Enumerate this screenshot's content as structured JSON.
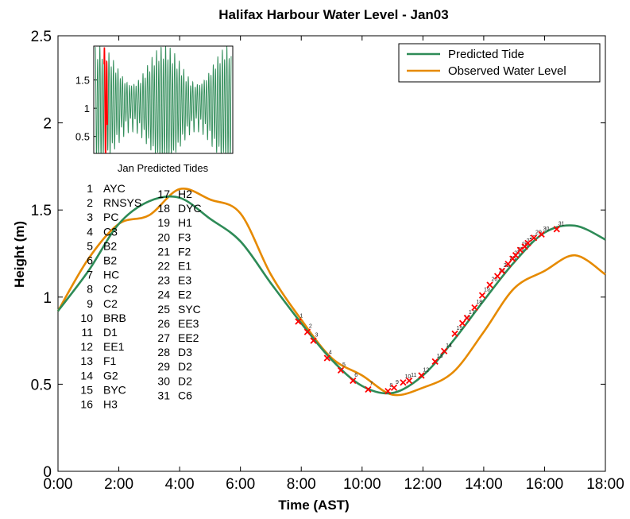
{
  "chart_data": {
    "type": "line",
    "title": "Halifax Harbour Water Level - Jan03",
    "xlabel": "Time (AST)",
    "ylabel": "Height (m)",
    "xlim": [
      0,
      18
    ],
    "ylim": [
      0,
      2.5
    ],
    "x_ticks": [
      0,
      2,
      4,
      6,
      8,
      10,
      12,
      14,
      16,
      18
    ],
    "x_tick_labels": [
      "0:00",
      "2:00",
      "4:00",
      "6:00",
      "8:00",
      "10:00",
      "12:00",
      "14:00",
      "16:00",
      "18:00"
    ],
    "y_ticks": [
      0,
      0.5,
      1,
      1.5,
      2,
      2.5
    ],
    "y_tick_labels": [
      "0",
      "0.5",
      "1",
      "1.5",
      "2",
      "2.5"
    ],
    "legend_position": "top-right",
    "series": [
      {
        "name": "Predicted Tide",
        "color": "#2e8b57",
        "x": [
          0,
          1,
          2,
          3,
          4,
          5,
          6,
          7,
          8,
          9,
          10,
          11,
          12,
          13,
          14,
          15,
          16,
          17,
          18
        ],
        "y": [
          0.92,
          1.15,
          1.42,
          1.55,
          1.57,
          1.45,
          1.32,
          1.08,
          0.85,
          0.64,
          0.49,
          0.45,
          0.55,
          0.75,
          0.98,
          1.2,
          1.37,
          1.41,
          1.33
        ]
      },
      {
        "name": "Observed Water Level",
        "color": "#e68a00",
        "x": [
          0,
          1,
          2,
          3,
          4,
          5,
          6,
          7,
          8,
          9,
          10,
          11,
          12,
          13,
          14,
          15,
          16,
          17,
          18
        ],
        "y": [
          0.92,
          1.22,
          1.42,
          1.47,
          1.62,
          1.56,
          1.48,
          1.13,
          0.87,
          0.65,
          0.55,
          0.44,
          0.48,
          0.57,
          0.8,
          1.05,
          1.15,
          1.24,
          1.13
        ]
      }
    ],
    "sample_points": {
      "color": "#ff0000",
      "labels": [
        "1",
        "2",
        "3",
        "4",
        "5",
        "6",
        "7",
        "8",
        "9",
        "10",
        "11",
        "12",
        "13",
        "14",
        "15",
        "16",
        "17",
        "18",
        "19",
        "20",
        "21",
        "22",
        "23",
        "24",
        "25",
        "26",
        "27",
        "28",
        "29",
        "30",
        "31"
      ],
      "x": [
        7.9,
        8.2,
        8.4,
        8.85,
        9.3,
        9.7,
        10.2,
        10.85,
        11.05,
        11.35,
        11.55,
        11.95,
        12.4,
        12.7,
        13.05,
        13.3,
        13.45,
        13.7,
        13.95,
        14.2,
        14.45,
        14.6,
        14.8,
        14.95,
        15.05,
        15.2,
        15.35,
        15.45,
        15.65,
        15.9,
        16.4
      ],
      "y": [
        0.86,
        0.8,
        0.75,
        0.65,
        0.58,
        0.52,
        0.47,
        0.46,
        0.48,
        0.51,
        0.52,
        0.55,
        0.63,
        0.69,
        0.79,
        0.85,
        0.88,
        0.94,
        1.01,
        1.07,
        1.12,
        1.15,
        1.19,
        1.22,
        1.24,
        1.27,
        1.29,
        1.31,
        1.34,
        1.36,
        1.39
      ]
    },
    "inset": {
      "xlabel": "Jan Predicted Tides",
      "ylim": [
        0.2,
        2.1
      ],
      "y_ticks": [
        0.5,
        1,
        1.5
      ],
      "y_tick_labels": [
        "0.5",
        "1",
        "1.5"
      ],
      "series_color": "#2e8b57",
      "marker_color": "#ff0000",
      "marker_day": 3,
      "days": 31
    }
  },
  "locations": [
    {
      "num": "1",
      "code": "AYC"
    },
    {
      "num": "2",
      "code": "RNSYS"
    },
    {
      "num": "3",
      "code": "PC"
    },
    {
      "num": "4",
      "code": "C3"
    },
    {
      "num": "5",
      "code": "B2"
    },
    {
      "num": "6",
      "code": "B2"
    },
    {
      "num": "7",
      "code": "HC"
    },
    {
      "num": "8",
      "code": "C2"
    },
    {
      "num": "9",
      "code": "C2"
    },
    {
      "num": "10",
      "code": "BRB"
    },
    {
      "num": "11",
      "code": "D1"
    },
    {
      "num": "12",
      "code": "EE1"
    },
    {
      "num": "13",
      "code": "F1"
    },
    {
      "num": "14",
      "code": "G2"
    },
    {
      "num": "15",
      "code": "BYC"
    },
    {
      "num": "16",
      "code": "H3"
    },
    {
      "num": "17",
      "code": "H2"
    },
    {
      "num": "18",
      "code": "DYC"
    },
    {
      "num": "19",
      "code": "H1"
    },
    {
      "num": "20",
      "code": "F3"
    },
    {
      "num": "21",
      "code": "F2"
    },
    {
      "num": "22",
      "code": "E1"
    },
    {
      "num": "23",
      "code": "E3"
    },
    {
      "num": "24",
      "code": "E2"
    },
    {
      "num": "25",
      "code": "SYC"
    },
    {
      "num": "26",
      "code": "EE3"
    },
    {
      "num": "27",
      "code": "EE2"
    },
    {
      "num": "28",
      "code": "D3"
    },
    {
      "num": "29",
      "code": "D2"
    },
    {
      "num": "30",
      "code": "D2"
    },
    {
      "num": "31",
      "code": "C6"
    }
  ]
}
